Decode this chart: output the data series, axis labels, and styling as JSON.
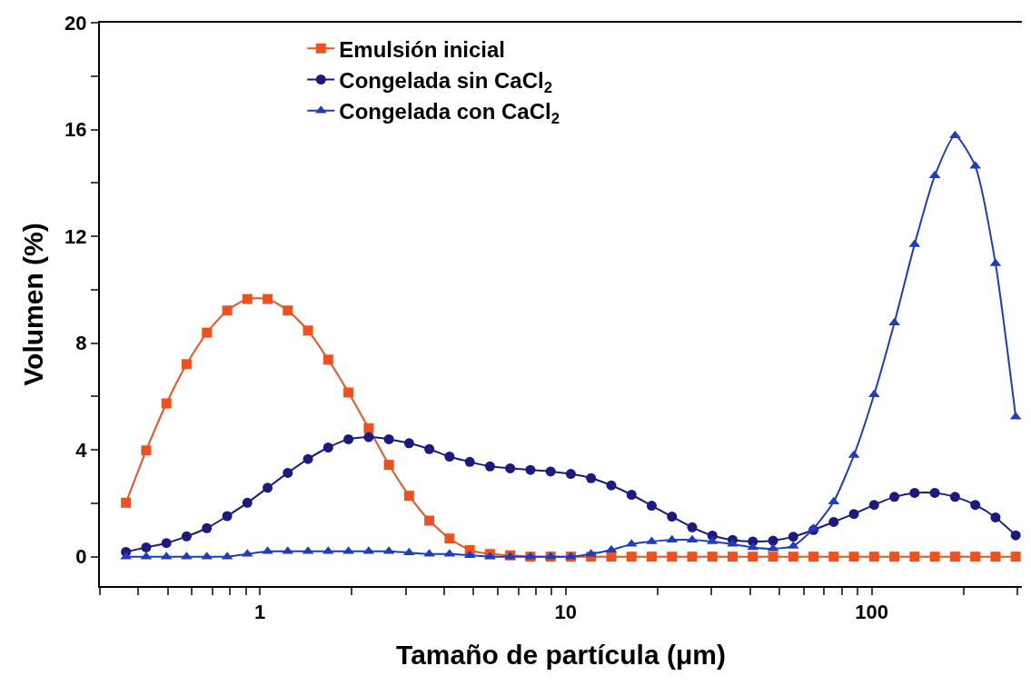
{
  "chart_data": {
    "type": "line",
    "xlabel": "Tamaño de partícula (μm)",
    "ylabel": "Volumen (%)",
    "log": "x",
    "legend": "top",
    "line_style": "solid",
    "x": [
      0.365,
      0.425,
      0.495,
      0.576,
      0.671,
      0.782,
      0.91,
      1.06,
      1.234,
      1.437,
      1.673,
      1.948,
      2.269,
      2.642,
      3.076,
      3.581,
      4.17,
      4.856,
      5.654,
      6.584,
      7.666,
      8.925,
      10.39,
      12.1,
      14.09,
      16.41,
      19.1,
      22.25,
      25.9,
      30.16,
      35.12,
      40.89,
      47.62,
      55.45,
      64.56,
      75.16,
      87.53,
      101.9,
      118.7,
      138.2,
      160.9,
      187.4,
      218.2,
      254.1,
      295.8
    ],
    "xlim": [
      0.3,
      310
    ],
    "ylim": [
      -1.1,
      20
    ],
    "xticks": [
      {
        "value": 0.3,
        "label": null
      },
      {
        "value": 0.4,
        "label": null
      },
      {
        "value": 0.5,
        "label": null
      },
      {
        "value": 0.6,
        "label": null
      },
      {
        "value": 0.7,
        "label": null
      },
      {
        "value": 0.8,
        "label": null
      },
      {
        "value": 0.9,
        "label": null
      },
      1,
      {
        "value": 2,
        "label": null
      },
      {
        "value": 3,
        "label": null
      },
      {
        "value": 4,
        "label": null
      },
      {
        "value": 5,
        "label": null
      },
      {
        "value": 6,
        "label": null
      },
      {
        "value": 7,
        "label": null
      },
      {
        "value": 8,
        "label": null
      },
      {
        "value": 9,
        "label": null
      },
      10,
      {
        "value": 20,
        "label": null
      },
      {
        "value": 30,
        "label": null
      },
      {
        "value": 40,
        "label": null
      },
      {
        "value": 50,
        "label": null
      },
      {
        "value": 60,
        "label": null
      },
      {
        "value": 70,
        "label": null
      },
      {
        "value": 80,
        "label": null
      },
      {
        "value": 90,
        "label": null
      },
      100,
      {
        "value": 200,
        "label": null
      },
      {
        "value": 300,
        "label": null
      }
    ],
    "yticks": [
      0,
      {
        "value": 2,
        "label": null
      },
      4,
      {
        "value": 6,
        "label": null
      },
      8,
      {
        "value": 10,
        "label": null
      },
      12,
      {
        "value": 14,
        "label": null
      },
      16,
      {
        "value": 18,
        "label": null
      },
      20
    ],
    "series": [
      {
        "name": "Emulsión inicial",
        "color": "#f0501e",
        "marker": "square",
        "values": [
          2.02,
          3.98,
          5.74,
          7.21,
          8.39,
          9.22,
          9.65,
          9.65,
          9.22,
          8.47,
          7.38,
          6.15,
          4.81,
          3.44,
          2.28,
          1.35,
          0.68,
          0.25,
          0.1,
          0.05,
          0,
          0,
          0,
          0,
          0,
          0,
          0,
          0,
          0,
          0,
          0,
          0,
          0,
          0,
          0,
          0,
          0,
          0,
          0,
          0,
          0,
          0,
          0,
          0,
          0
        ]
      },
      {
        "name": "Congelada sin CaCl$_{2}$",
        "color": "#1a1a80",
        "marker": "circle",
        "values": [
          0.18,
          0.35,
          0.51,
          0.76,
          1.07,
          1.52,
          2.02,
          2.58,
          3.14,
          3.66,
          4.09,
          4.4,
          4.48,
          4.4,
          4.25,
          4.03,
          3.75,
          3.55,
          3.38,
          3.31,
          3.25,
          3.19,
          3.1,
          2.94,
          2.67,
          2.32,
          1.91,
          1.5,
          1.1,
          0.79,
          0.63,
          0.57,
          0.6,
          0.75,
          1.0,
          1.3,
          1.6,
          1.94,
          2.24,
          2.39,
          2.39,
          2.24,
          1.94,
          1.47,
          0.8
        ]
      },
      {
        "name": "Congelada con CaCl$_{2}$",
        "color": "#1f3cc0",
        "marker": "triangle",
        "values": [
          0,
          0,
          0,
          0,
          0,
          0,
          0.1,
          0.2,
          0.2,
          0.2,
          0.2,
          0.2,
          0.2,
          0.2,
          0.15,
          0.1,
          0.1,
          0.05,
          0,
          0,
          0,
          0,
          0,
          0.1,
          0.25,
          0.47,
          0.57,
          0.63,
          0.63,
          0.57,
          0.47,
          0.35,
          0.3,
          0.4,
          1.05,
          2.06,
          3.8,
          6.07,
          8.76,
          11.7,
          14.27,
          15.77,
          14.63,
          10.98,
          5.24
        ]
      }
    ]
  }
}
